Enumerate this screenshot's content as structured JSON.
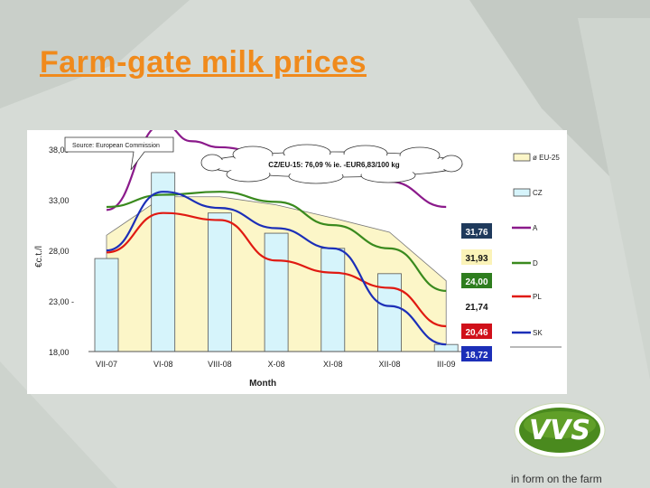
{
  "slide": {
    "title": "Farm-gate milk prices",
    "tagline": "in form on the farm",
    "logo_text": "VVS"
  },
  "colors": {
    "title": "#f08a1c",
    "eu25_fill": "#fcf6c8",
    "cz_bar": "#d6f4fb",
    "A": "#8b1a8b",
    "D": "#3a8a1e",
    "PL": "#e01a12",
    "SK": "#1c2fb8"
  },
  "chart_data": {
    "type": "line",
    "source_label": "Source: European Commission",
    "callout": "CZ/EU-15: 76,09 %  ie. -EUR6,83/100 kg",
    "ylabel": "€c.t./l",
    "xlabel": "Month",
    "ylim": [
      18,
      39
    ],
    "yticks": [
      "38,00",
      "33,00",
      "28,00",
      "23,00 -",
      "18,00"
    ],
    "ytick_values": [
      38,
      33,
      28,
      23,
      18
    ],
    "categories": [
      "VII-07",
      "VI-08",
      "VIII-08",
      "X-08",
      "XI-08",
      "XII-08",
      "III-09"
    ],
    "series": [
      {
        "name": "ø EU-25",
        "kind": "area",
        "color": "#fcf6c8",
        "x": [
          0,
          1,
          2,
          3,
          4,
          5,
          6
        ],
        "values": [
          29.5,
          33.3,
          33.3,
          32.5,
          31.2,
          29.8,
          25.0
        ]
      },
      {
        "name": "CZ",
        "kind": "bar",
        "color": "#d6f4fb",
        "x": [
          0,
          1,
          2,
          3,
          4,
          5,
          6
        ],
        "values": [
          27.2,
          35.7,
          31.7,
          29.7,
          28.2,
          25.7,
          18.7
        ]
      },
      {
        "name": "A",
        "kind": "line",
        "color": "#8b1a8b",
        "x": [
          0,
          1,
          1.5,
          2,
          3,
          4,
          5,
          6
        ],
        "values": [
          32.0,
          40.5,
          38.8,
          38.2,
          37.2,
          36.0,
          34.8,
          32.3
        ]
      },
      {
        "name": "D",
        "kind": "line",
        "color": "#3a8a1e",
        "x": [
          0,
          1,
          2,
          3,
          4,
          5,
          6
        ],
        "values": [
          32.3,
          33.5,
          33.8,
          32.8,
          30.5,
          28.2,
          24.0
        ]
      },
      {
        "name": "PL",
        "kind": "line",
        "color": "#e01a12",
        "x": [
          0,
          1,
          2,
          3,
          4,
          5,
          6
        ],
        "values": [
          27.8,
          31.7,
          31.0,
          27.0,
          25.8,
          24.3,
          20.5
        ]
      },
      {
        "name": "SK",
        "kind": "line",
        "color": "#1c2fb8",
        "x": [
          0,
          1,
          2,
          3,
          4,
          5,
          6
        ],
        "values": [
          28.0,
          33.8,
          32.2,
          30.2,
          28.2,
          22.5,
          18.7
        ]
      }
    ],
    "end_labels": [
      {
        "text": "31,76",
        "bg": "#1f3a5c",
        "fg": "#ffffff"
      },
      {
        "text": "31,93",
        "bg": "#fbf3b8",
        "fg": "#111111"
      },
      {
        "text": "24,00",
        "bg": "#2e7d1e",
        "fg": "#ffffff"
      },
      {
        "text": "21,74",
        "bg": "#ffffff",
        "fg": "#111111"
      },
      {
        "text": "20,46",
        "bg": "#d0101a",
        "fg": "#ffffff"
      },
      {
        "text": "18,72",
        "bg": "#1c2fb8",
        "fg": "#ffffff"
      }
    ],
    "legend": [
      "ø EU-25",
      "CZ",
      "A",
      "D",
      "PL",
      "SK"
    ],
    "legend_placement": "right",
    "grid": false
  }
}
